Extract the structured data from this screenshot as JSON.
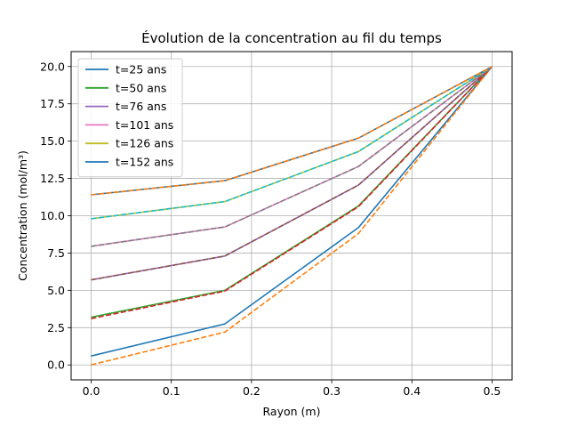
{
  "chart_data": {
    "type": "line",
    "title": "Évolution de la concentration au fil du temps",
    "xlabel": "Rayon (m)",
    "ylabel": "Concentration (mol/m³)",
    "xlim": [
      -0.025,
      0.525
    ],
    "ylim": [
      -1.0,
      21.0
    ],
    "xticks": [
      0.0,
      0.1,
      0.2,
      0.3,
      0.4,
      0.5
    ],
    "xtick_labels": [
      "0.0",
      "0.1",
      "0.2",
      "0.3",
      "0.4",
      "0.5"
    ],
    "yticks": [
      0.0,
      2.5,
      5.0,
      7.5,
      10.0,
      12.5,
      15.0,
      17.5,
      20.0
    ],
    "ytick_labels": [
      "0.0",
      "2.5",
      "5.0",
      "7.5",
      "10.0",
      "12.5",
      "15.0",
      "17.5",
      "20.0"
    ],
    "grid": true,
    "legend_position": "upper-left",
    "x": [
      0.0,
      0.1667,
      0.3333,
      0.5
    ],
    "series": [
      {
        "name": "t=25 ans",
        "color": "#1f77b4",
        "style": "solid",
        "values": [
          0.6,
          2.75,
          9.2,
          20.0
        ]
      },
      {
        "name": "",
        "color": "#ff7f0e",
        "style": "dashed",
        "values": [
          0.0,
          2.2,
          8.8,
          20.0
        ]
      },
      {
        "name": "t=50 ans",
        "color": "#2ca02c",
        "style": "solid",
        "values": [
          3.2,
          5.0,
          10.65,
          20.0
        ]
      },
      {
        "name": "",
        "color": "#d62728",
        "style": "dashed",
        "values": [
          3.1,
          4.95,
          10.6,
          20.0
        ]
      },
      {
        "name": "t=76 ans",
        "color": "#9467bd",
        "style": "solid",
        "values": [
          5.7,
          7.3,
          12.05,
          20.0
        ]
      },
      {
        "name": "",
        "color": "#8c564b",
        "style": "dashed",
        "values": [
          5.7,
          7.3,
          12.05,
          20.0
        ]
      },
      {
        "name": "t=101 ans",
        "color": "#e377c2",
        "style": "solid",
        "values": [
          7.95,
          9.25,
          13.3,
          20.0
        ]
      },
      {
        "name": "",
        "color": "#7f7f7f",
        "style": "dashed",
        "values": [
          7.95,
          9.25,
          13.3,
          20.0
        ]
      },
      {
        "name": "t=126 ans",
        "color": "#bcbd22",
        "style": "solid",
        "values": [
          9.8,
          10.95,
          14.3,
          20.0
        ]
      },
      {
        "name": "",
        "color": "#17becf",
        "style": "dashed",
        "values": [
          9.8,
          10.95,
          14.3,
          20.0
        ]
      },
      {
        "name": "t=152 ans",
        "color": "#1f77b4",
        "style": "solid",
        "values": [
          11.4,
          12.35,
          15.2,
          20.0
        ]
      },
      {
        "name": "",
        "color": "#ff7f0e",
        "style": "dashed",
        "values": [
          11.4,
          12.35,
          15.2,
          20.0
        ]
      }
    ]
  }
}
